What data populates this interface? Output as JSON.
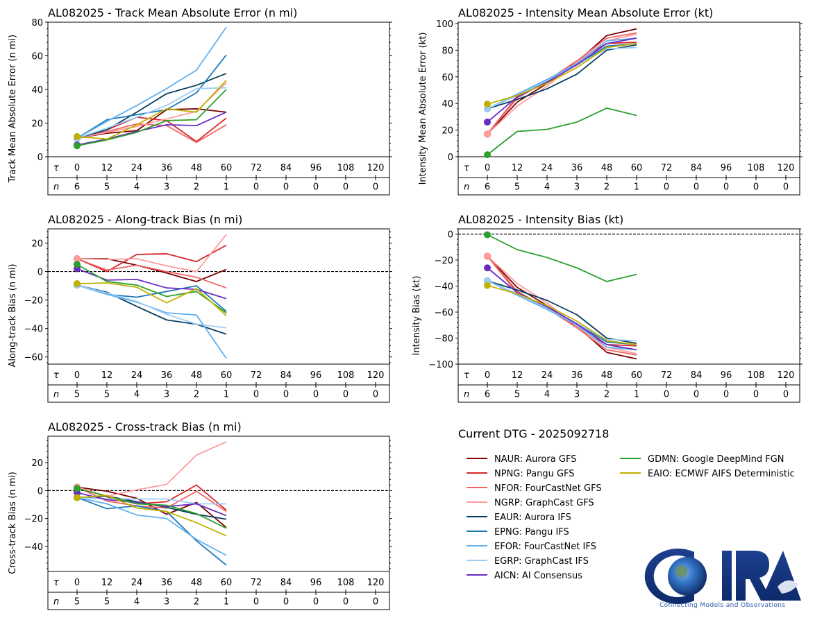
{
  "dtg_label": "Current DTG - 2025092718",
  "logo": {
    "text": "CIRA",
    "tagline": "Connecting Models and Observations"
  },
  "models": [
    {
      "id": "NAUR",
      "label": "NAUR: Aurora GFS",
      "color": "#7b0000"
    },
    {
      "id": "NPNG",
      "label": "NPNG: Pangu GFS",
      "color": "#d62728"
    },
    {
      "id": "NFOR",
      "label": "NFOR: FourCastNet GFS",
      "color": "#f26363"
    },
    {
      "id": "NGRP",
      "label": "NGRP: GraphCast GFS",
      "color": "#ff9b9b"
    },
    {
      "id": "EAUR",
      "label": "EAUR: Aurora IFS",
      "color": "#053d5e"
    },
    {
      "id": "EPNG",
      "label": "EPNG: Pangu IFS",
      "color": "#1f77b4"
    },
    {
      "id": "EFOR",
      "label": "EFOR: FourCastNet IFS",
      "color": "#5fb0f0"
    },
    {
      "id": "EGRP",
      "label": "EGRP: GraphCast IFS",
      "color": "#9ccdf7"
    },
    {
      "id": "AICN",
      "label": "AICN: AI Consensus",
      "color": "#6a2bc4"
    },
    {
      "id": "GDMN",
      "label": "GDMN: Google DeepMind FGN",
      "color": "#2ca02c"
    },
    {
      "id": "EAIO",
      "label": "EAIO: ECMWF AIFS Deterministic",
      "color": "#c2b000"
    }
  ],
  "chart_data": [
    {
      "id": "track_mae",
      "type": "line",
      "title": "AL082025 - Track Mean Absolute Error (n mi)",
      "ylabel": "Track Mean Absolute Error (n mi)",
      "xlabel_tau": "τ",
      "xlabel_n": "n",
      "x": [
        0,
        12,
        24,
        36,
        48,
        60,
        72,
        84,
        96,
        108,
        120
      ],
      "n": [
        6,
        5,
        4,
        3,
        2,
        1,
        0,
        0,
        0,
        0,
        0
      ],
      "ylim": [
        0,
        80
      ],
      "yticks": [
        0,
        20,
        40,
        60,
        80
      ],
      "zero_line": false,
      "series": [
        {
          "name": "NAUR",
          "values": [
            11,
            14,
            15.5,
            28,
            28.5,
            26.5
          ]
        },
        {
          "name": "NPNG",
          "values": [
            11,
            16,
            23.5,
            21.5,
            9,
            23
          ]
        },
        {
          "name": "NFOR",
          "values": [
            11,
            15,
            19.5,
            18.5,
            8.5,
            19
          ]
        },
        {
          "name": "NGRP",
          "values": [
            11,
            14.5,
            18,
            22.5,
            27,
            44
          ]
        },
        {
          "name": "EAUR",
          "values": [
            11,
            16,
            26.5,
            37.5,
            42.5,
            49.5
          ]
        },
        {
          "name": "EPNG",
          "values": [
            11,
            22,
            25,
            28,
            38,
            60.5
          ]
        },
        {
          "name": "EFOR",
          "values": [
            11,
            21,
            30.5,
            40.5,
            51.5,
            77
          ]
        },
        {
          "name": "EGRP",
          "values": [
            11,
            17,
            23.5,
            30.5,
            40.5,
            41
          ]
        },
        {
          "name": "AICN",
          "values": [
            7,
            10.5,
            15,
            19,
            18.5,
            26.5
          ]
        },
        {
          "name": "GDMN",
          "values": [
            6.5,
            10,
            14.5,
            21.5,
            22,
            40
          ]
        },
        {
          "name": "EAIO",
          "values": [
            12,
            10.5,
            19,
            28.5,
            26.5,
            45.5
          ]
        }
      ]
    },
    {
      "id": "intensity_mae",
      "type": "line",
      "title": "AL082025 - Intensity Mean Absolute Error (kt)",
      "ylabel": "Intensity Mean Absolute Error (kt)",
      "xlabel_tau": "τ",
      "xlabel_n": "n",
      "x": [
        0,
        12,
        24,
        36,
        48,
        60,
        72,
        84,
        96,
        108,
        120
      ],
      "n": [
        6,
        5,
        4,
        3,
        2,
        1,
        0,
        0,
        0,
        0,
        0
      ],
      "ylim": [
        0,
        101
      ],
      "yticks": [
        0,
        20,
        40,
        60,
        80,
        100
      ],
      "zero_line": false,
      "series": [
        {
          "name": "NAUR",
          "values": [
            17,
            41,
            55,
            71,
            91,
            96
          ]
        },
        {
          "name": "NPNG",
          "values": [
            17,
            45,
            57,
            72,
            85,
            86
          ]
        },
        {
          "name": "NFOR",
          "values": [
            17,
            44,
            57,
            72,
            89,
            93
          ]
        },
        {
          "name": "NGRP",
          "values": [
            17,
            38,
            53,
            71,
            87,
            92
          ]
        },
        {
          "name": "EAUR",
          "values": [
            36,
            43,
            51,
            62,
            80,
            84
          ]
        },
        {
          "name": "EPNG",
          "values": [
            36,
            46,
            57,
            69,
            83,
            85
          ]
        },
        {
          "name": "EFOR",
          "values": [
            36,
            47,
            58,
            70,
            87,
            89
          ]
        },
        {
          "name": "EGRP",
          "values": [
            36,
            46,
            57,
            69,
            81,
            82
          ]
        },
        {
          "name": "AICN",
          "values": [
            26,
            45,
            56,
            69,
            85,
            89
          ]
        },
        {
          "name": "GDMN",
          "values": [
            1.5,
            19,
            20.5,
            26,
            36.5,
            31
          ]
        },
        {
          "name": "EAIO",
          "values": [
            39.5,
            46,
            55,
            67,
            82,
            85
          ]
        }
      ]
    },
    {
      "id": "along_track_bias",
      "type": "line",
      "title": "AL082025 - Along-track Bias (n mi)",
      "ylabel": "Along-track Bias (n mi)",
      "xlabel_tau": "τ",
      "xlabel_n": "n",
      "x": [
        0,
        12,
        24,
        36,
        48,
        60,
        72,
        84,
        96,
        108,
        120
      ],
      "n": [
        5,
        5,
        4,
        3,
        2,
        1,
        0,
        0,
        0,
        0,
        0
      ],
      "ylim": [
        -65,
        30
      ],
      "yticks": [
        -60,
        -40,
        -20,
        0,
        20
      ],
      "zero_line": true,
      "series": [
        {
          "name": "NAUR",
          "values": [
            9,
            9,
            4.5,
            -1,
            -7,
            1.5
          ]
        },
        {
          "name": "NPNG",
          "values": [
            9,
            0,
            12,
            12.5,
            7,
            18.5
          ]
        },
        {
          "name": "NFOR",
          "values": [
            9,
            1,
            4.5,
            0,
            -4,
            -11.5
          ]
        },
        {
          "name": "NGRP",
          "values": [
            9,
            8.5,
            9,
            4,
            0,
            26
          ]
        },
        {
          "name": "EAUR",
          "values": [
            -9.5,
            -14.5,
            -24.5,
            -34,
            -37,
            -44
          ]
        },
        {
          "name": "EPNG",
          "values": [
            -9.5,
            -16,
            -18,
            -14,
            -10,
            -28
          ]
        },
        {
          "name": "EFOR",
          "values": [
            -9.5,
            -16,
            -21.5,
            -29,
            -30.5,
            -61
          ]
        },
        {
          "name": "EGRP",
          "values": [
            -9.5,
            -15,
            -21,
            -30,
            -37,
            -39.5
          ]
        },
        {
          "name": "AICN",
          "values": [
            2,
            -6,
            -5.5,
            -11.5,
            -12.5,
            -19
          ]
        },
        {
          "name": "GDMN",
          "values": [
            5,
            -7,
            -9.5,
            -17.5,
            -14,
            -29
          ]
        },
        {
          "name": "EAIO",
          "values": [
            -8.5,
            -8,
            -11,
            -22,
            -12,
            -31
          ]
        }
      ]
    },
    {
      "id": "intensity_bias",
      "type": "line",
      "title": "AL082025 - Intensity Bias (kt)",
      "ylabel": "Intensity Bias (kt)",
      "xlabel_tau": "τ",
      "xlabel_n": "n",
      "x": [
        0,
        12,
        24,
        36,
        48,
        60,
        72,
        84,
        96,
        108,
        120
      ],
      "n": [
        6,
        5,
        4,
        3,
        2,
        1,
        0,
        0,
        0,
        0,
        0
      ],
      "ylim": [
        -100,
        4
      ],
      "yticks": [
        -100,
        -80,
        -60,
        -40,
        -20,
        0
      ],
      "zero_line": true,
      "series": [
        {
          "name": "NAUR",
          "values": [
            -17,
            -41,
            -55,
            -71,
            -91,
            -96
          ]
        },
        {
          "name": "NPNG",
          "values": [
            -17,
            -45,
            -57,
            -72,
            -85,
            -86
          ]
        },
        {
          "name": "NFOR",
          "values": [
            -17,
            -44,
            -57,
            -72,
            -89,
            -93
          ]
        },
        {
          "name": "NGRP",
          "values": [
            -17,
            -38,
            -53,
            -71,
            -87,
            -92
          ]
        },
        {
          "name": "EAUR",
          "values": [
            -36,
            -43,
            -51,
            -62,
            -80,
            -84
          ]
        },
        {
          "name": "EPNG",
          "values": [
            -36,
            -46,
            -57,
            -69,
            -83,
            -85
          ]
        },
        {
          "name": "EFOR",
          "values": [
            -36,
            -47,
            -58,
            -70,
            -87,
            -89
          ]
        },
        {
          "name": "EGRP",
          "values": [
            -36,
            -46,
            -57,
            -69,
            -81,
            -82
          ]
        },
        {
          "name": "AICN",
          "values": [
            -26,
            -45,
            -56,
            -69,
            -85,
            -89
          ]
        },
        {
          "name": "GDMN",
          "values": [
            -0.5,
            -12,
            -18,
            -26,
            -36.5,
            -31
          ]
        },
        {
          "name": "EAIO",
          "values": [
            -39.5,
            -46,
            -55,
            -67,
            -82,
            -85
          ]
        }
      ]
    },
    {
      "id": "cross_track_bias",
      "type": "line",
      "title": "AL082025 - Cross-track Bias (n mi)",
      "ylabel": "Cross-track Bias (n mi)",
      "xlabel_tau": "τ",
      "xlabel_n": "n",
      "x": [
        0,
        12,
        24,
        36,
        48,
        60,
        72,
        84,
        96,
        108,
        120
      ],
      "n": [
        5,
        5,
        4,
        3,
        2,
        1,
        0,
        0,
        0,
        0,
        0
      ],
      "ylim": [
        -58,
        39
      ],
      "yticks": [
        -40,
        -20,
        0,
        20
      ],
      "zero_line": true,
      "series": [
        {
          "name": "NAUR",
          "values": [
            2.5,
            -0.5,
            -5.5,
            -17,
            -8.5,
            -26.5
          ]
        },
        {
          "name": "NPNG",
          "values": [
            2.5,
            -4.5,
            -9.5,
            -8,
            4,
            -14
          ]
        },
        {
          "name": "NFOR",
          "values": [
            2.5,
            -7.5,
            -11,
            -12.5,
            -0.5,
            -15
          ]
        },
        {
          "name": "NGRP",
          "values": [
            2.5,
            -4,
            0.5,
            4.5,
            25.5,
            35
          ]
        },
        {
          "name": "EAUR",
          "values": [
            -5,
            -4,
            -8,
            -12,
            -17,
            -20.5
          ]
        },
        {
          "name": "EPNG",
          "values": [
            -5,
            -13,
            -11,
            -15,
            -36,
            -53.5
          ]
        },
        {
          "name": "EFOR",
          "values": [
            -5,
            -9.5,
            -17.5,
            -20,
            -35,
            -46.5
          ]
        },
        {
          "name": "EGRP",
          "values": [
            -5,
            -6,
            -6,
            -6,
            -9.5,
            -9.5
          ]
        },
        {
          "name": "AICN",
          "values": [
            -1.5,
            -6.5,
            -8.5,
            -11.5,
            -9.5,
            -18
          ]
        },
        {
          "name": "GDMN",
          "values": [
            1.5,
            -4,
            -9.5,
            -10.5,
            -16.5,
            -27
          ]
        },
        {
          "name": "EAIO",
          "values": [
            -5,
            -3.5,
            -12.5,
            -15,
            -23,
            -32.5
          ]
        }
      ]
    }
  ]
}
